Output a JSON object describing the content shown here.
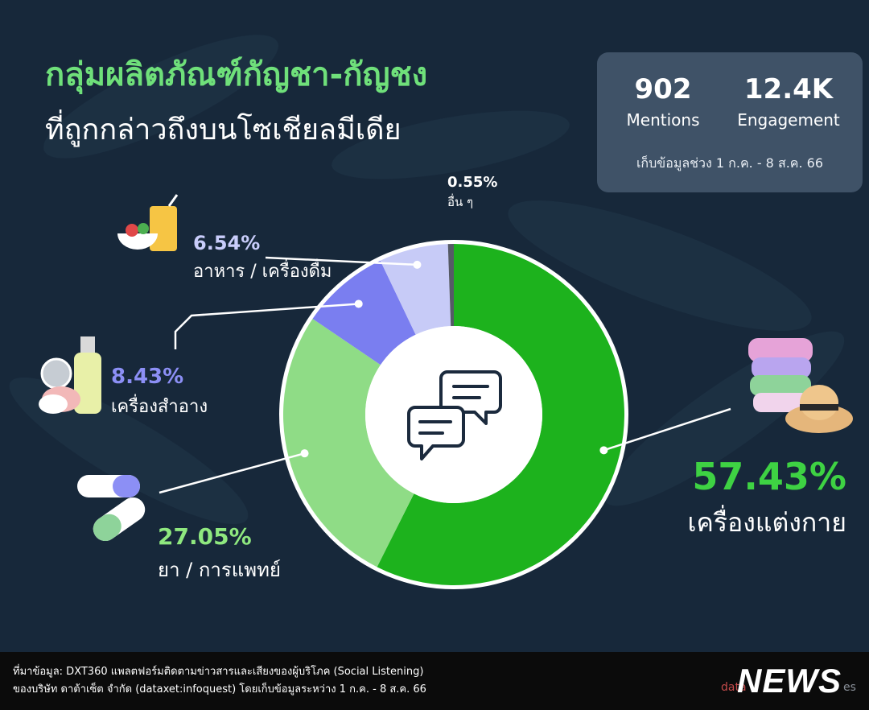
{
  "title_line1": "กลุ่มผลิตภัณฑ์กัญชา-กัญชง",
  "title_line2": "ที่ถูกกล่าวถึงบนโซเชียลมีเดีย",
  "stats": {
    "mentions_value": "902",
    "mentions_label": "Mentions",
    "engagement_value": "12.4K",
    "engagement_label": "Engagement",
    "period": "เก็บข้อมูลช่วง 1 ก.ค. - 8 ส.ค. 66"
  },
  "chart_data": {
    "type": "pie",
    "donut": true,
    "categories": [
      "เครื่องแต่งกาย",
      "ยา / การแพทย์",
      "เครื่องสำอาง",
      "อาหาร / เครื่องดื่ม",
      "อื่น ๆ"
    ],
    "values": [
      57.43,
      27.05,
      8.43,
      6.54,
      0.55
    ],
    "value_labels": [
      "57.43%",
      "27.05%",
      "8.43%",
      "6.54%",
      "0.55%"
    ],
    "colors": [
      "#1db21d",
      "#8fdc86",
      "#7a7ef0",
      "#c7cbf7",
      "#555a66"
    ],
    "label_colors": [
      "#3ed243",
      "#8fe87f",
      "#8c8ff5",
      "#c9cdfb",
      "#ffffff"
    ],
    "icons": [
      "clothes-hat-icon",
      "capsule-pill-icon",
      "cosmetics-icon",
      "food-drink-icon",
      null
    ],
    "center_icon": "chat-bubbles-icon"
  },
  "footer": {
    "source_line1": "ที่มาข้อมูล: DXT360 แพลตฟอร์มติดตามข่าวสารและเสียงของผู้บริโภค (Social Listening)",
    "source_line2": "ของบริษัท ดาต้าเซ็ต จำกัด (dataxet:infoquest) โดยเก็บข้อมูลระหว่าง 1 ก.ค. - 8 ส.ค. 66",
    "logo_text": "NEWS",
    "logo_prefix": "data",
    "logo_suffix": "es"
  }
}
